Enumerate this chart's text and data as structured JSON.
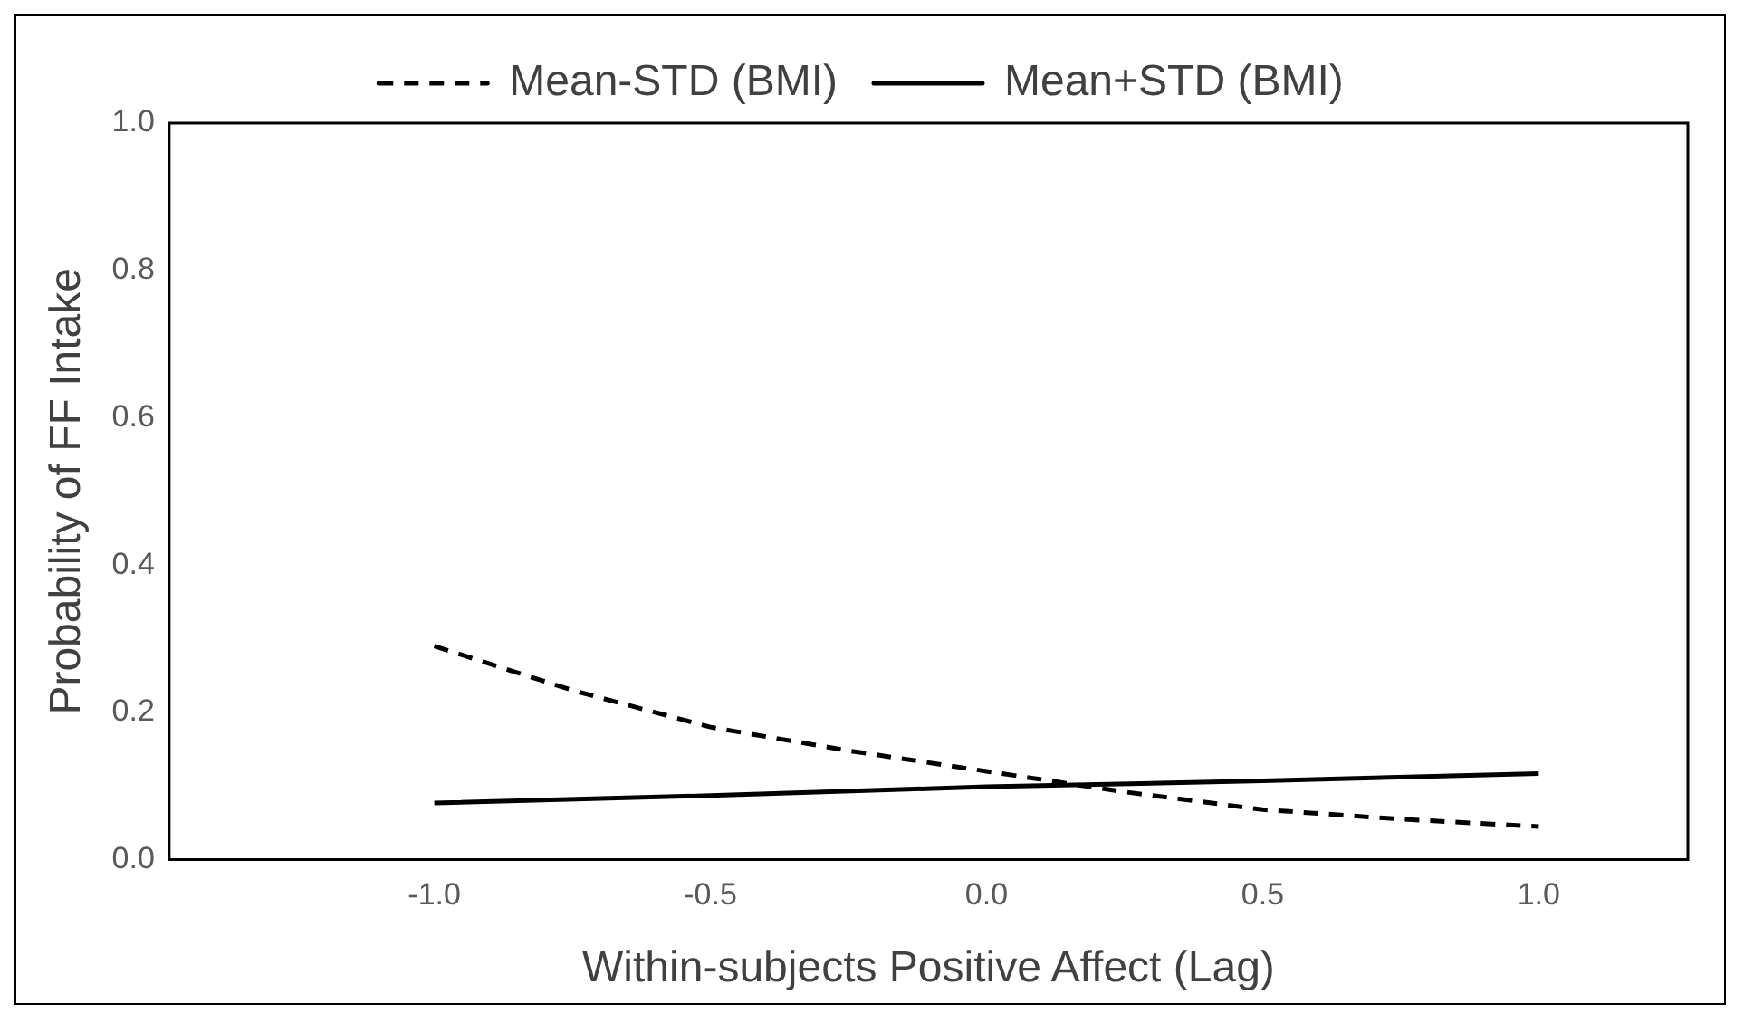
{
  "chart_data": {
    "type": "line",
    "xlabel": "Within-subjects Positive Affect (Lag)",
    "ylabel": "Probability of FF Intake",
    "xlim": [
      -1.48,
      1.27
    ],
    "xticks": [
      {
        "value": -1,
        "label": "-1.0"
      },
      {
        "value": -0.5,
        "label": "-0.5"
      },
      {
        "value": 0,
        "label": "0.0"
      },
      {
        "value": 0.5,
        "label": "0.5"
      },
      {
        "value": 1,
        "label": "1.0"
      }
    ],
    "ylim": [
      0,
      1
    ],
    "yticks": [
      {
        "value": 0,
        "label": "0.0"
      },
      {
        "value": 0.2,
        "label": "0.2"
      },
      {
        "value": 0.4,
        "label": "0.4"
      },
      {
        "value": 0.6,
        "label": "0.6"
      },
      {
        "value": 0.8,
        "label": "0.8"
      },
      {
        "value": 1,
        "label": "1.0"
      }
    ],
    "grid": false,
    "legend": "top",
    "marker": "none",
    "series": [
      {
        "name": "Mean-STD (BMI)",
        "color": "#000000",
        "line_style": "dashed",
        "x": [
          -1,
          -0.75,
          -0.5,
          -0.25,
          0,
          0.25,
          0.5,
          0.75,
          1
        ],
        "values": [
          0.29,
          0.23,
          0.18,
          0.148,
          0.12,
          0.092,
          0.068,
          0.055,
          0.045
        ]
      },
      {
        "name": "Mean+STD (BMI)",
        "color": "#000000",
        "line_style": "solid",
        "x": [
          -1,
          -0.5,
          0,
          0.5,
          1
        ],
        "values": [
          0.077,
          0.087,
          0.099,
          0.107,
          0.117
        ]
      }
    ]
  }
}
